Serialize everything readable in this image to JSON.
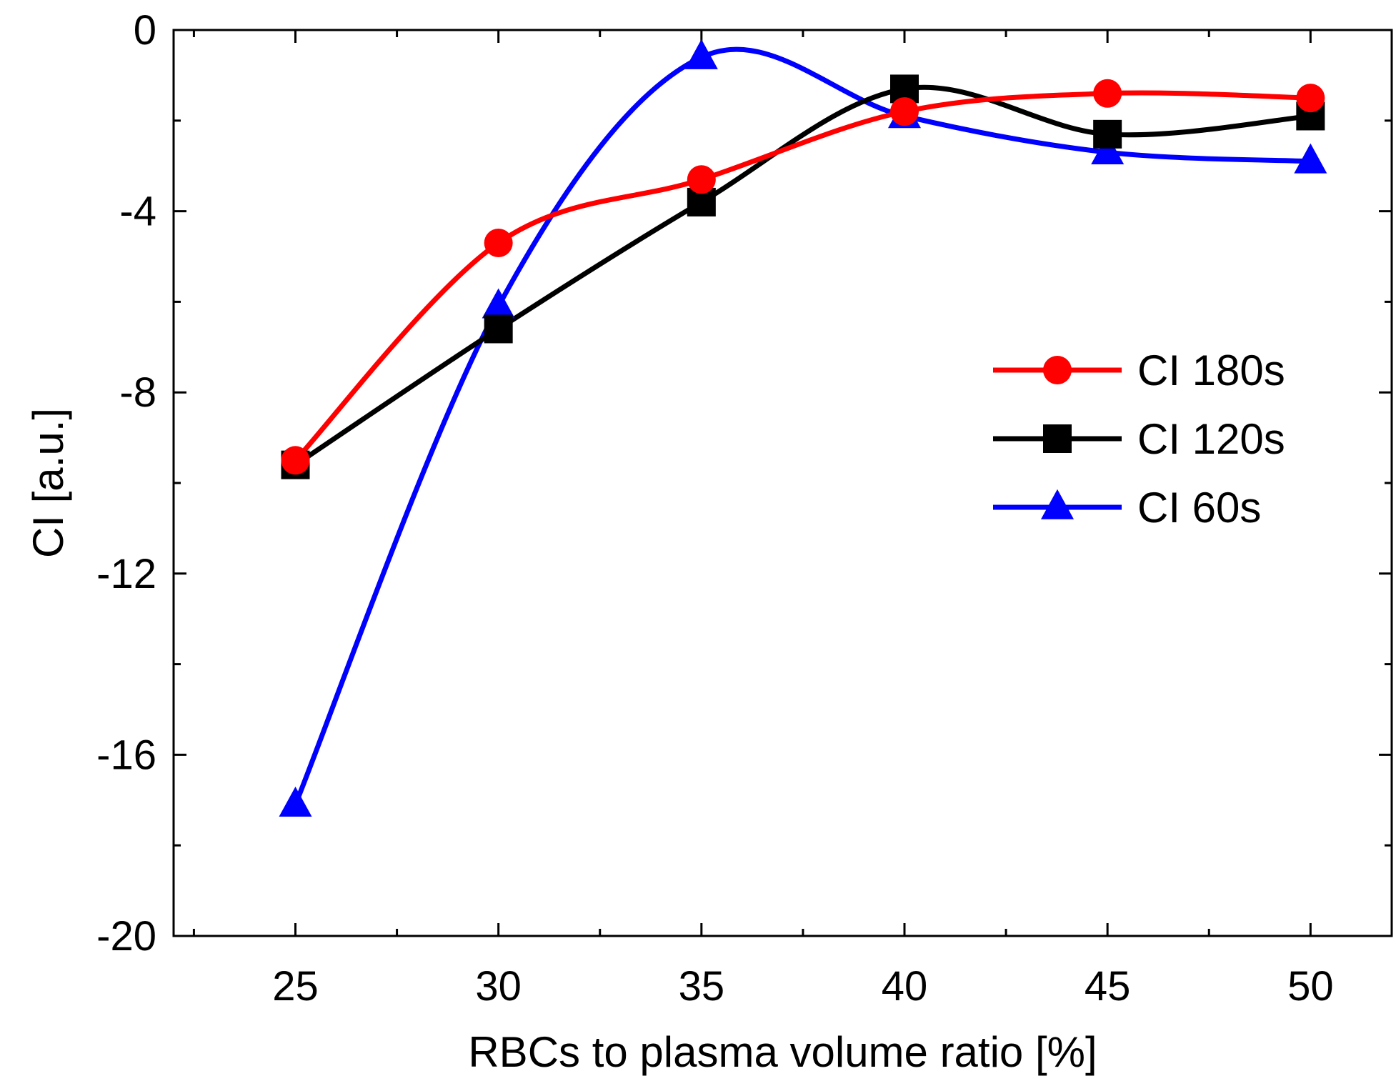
{
  "chart_data": {
    "type": "line",
    "title": "",
    "xlabel": "RBCs to plasma volume ratio [%]",
    "ylabel": "CI [a.u.]",
    "xlim": [
      22,
      52
    ],
    "ylim": [
      -20,
      0
    ],
    "x_ticks": [
      25,
      30,
      35,
      40,
      45,
      50
    ],
    "x_tick_labels": [
      "25",
      "30",
      "35",
      "40",
      "45",
      "50"
    ],
    "y_ticks": [
      0,
      -4,
      -8,
      -12,
      -16,
      -20
    ],
    "y_tick_labels": [
      "0",
      "-4",
      "-8",
      "-12",
      "-16",
      "-20"
    ],
    "grid": false,
    "legend_position": "right",
    "x": [
      25,
      30,
      35,
      40,
      45,
      50
    ],
    "series": [
      {
        "name": "CI 180s",
        "color": "#ff0000",
        "marker": "circle",
        "values": [
          -9.5,
          -4.7,
          -3.3,
          -1.8,
          -1.4,
          -1.5
        ]
      },
      {
        "name": "CI 120s",
        "color": "#000000",
        "marker": "square",
        "values": [
          -9.6,
          -6.6,
          -3.8,
          -1.3,
          -2.3,
          -1.9
        ]
      },
      {
        "name": "CI 60s",
        "color": "#0000ff",
        "marker": "triangle",
        "values": [
          -17.1,
          -6.1,
          -0.6,
          -1.9,
          -2.7,
          -2.9
        ]
      }
    ]
  }
}
